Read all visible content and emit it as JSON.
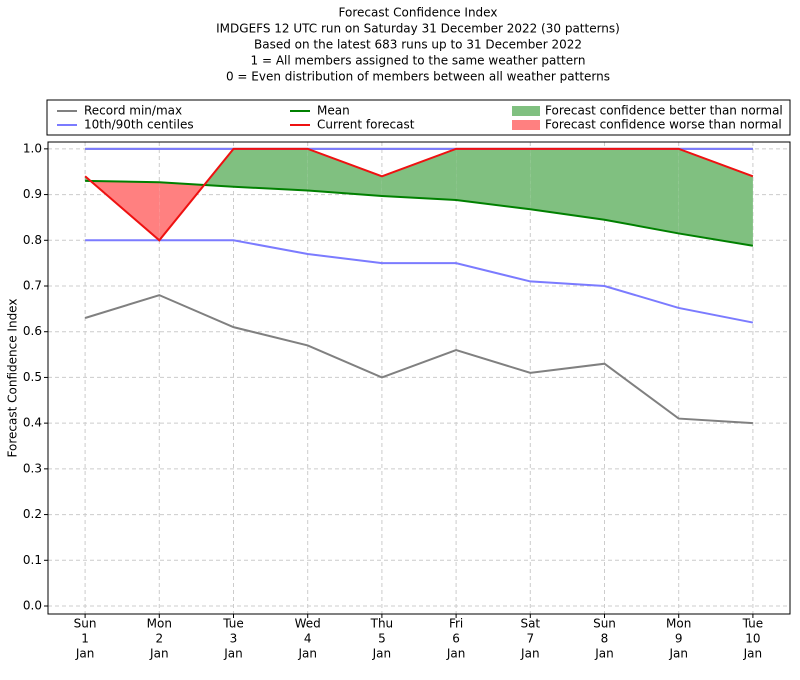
{
  "chart_data": {
    "type": "line",
    "title_lines": [
      "Forecast Confidence Index",
      "IMDGEFS 12 UTC run on Saturday 31 December 2022 (30 patterns)",
      "Based on the latest 683 runs up to 31 December 2022",
      "1 = All members assigned to the same weather pattern",
      "0 = Even distribution of members between all weather patterns"
    ],
    "y_label": "Forecast Confidence Index",
    "categories": [
      [
        "Sun",
        "1",
        "Jan"
      ],
      [
        "Mon",
        "2",
        "Jan"
      ],
      [
        "Tue",
        "3",
        "Jan"
      ],
      [
        "Wed",
        "4",
        "Jan"
      ],
      [
        "Thu",
        "5",
        "Jan"
      ],
      [
        "Fri",
        "6",
        "Jan"
      ],
      [
        "Sat",
        "7",
        "Jan"
      ],
      [
        "Sun",
        "8",
        "Jan"
      ],
      [
        "Mon",
        "9",
        "Jan"
      ],
      [
        "Tue",
        "10",
        "Jan"
      ]
    ],
    "ylim": [
      -0.0175,
      1.015
    ],
    "yticks": [
      {
        "value": 0,
        "label": "0.0"
      },
      0.1,
      0.2,
      0.3,
      0.4,
      0.5,
      0.6,
      0.7,
      0.8,
      0.9,
      {
        "value": 1,
        "label": "1.0"
      }
    ],
    "grid": true,
    "bands": [
      {
        "name": "Record min/max",
        "color": "#808080",
        "lower": [
          0.63,
          0.68,
          0.61,
          0.57,
          0.5,
          0.56,
          0.51,
          0.53,
          0.41,
          0.4
        ],
        "upper": [
          1,
          1,
          1,
          1,
          1,
          1,
          1,
          1,
          1,
          1
        ]
      },
      {
        "name": "10th/90th centiles",
        "color": "#7b7bff",
        "lower": [
          0.8,
          0.8,
          0.8,
          0.77,
          0.75,
          0.75,
          0.71,
          0.7,
          0.652,
          0.62
        ],
        "upper": [
          1,
          1,
          1,
          1,
          1,
          1,
          1,
          1,
          1,
          1
        ]
      }
    ],
    "series": [
      {
        "name": "Mean",
        "color": "#008000",
        "values": [
          0.93,
          0.927,
          0.917,
          0.909,
          0.897,
          0.888,
          0.868,
          0.845,
          0.815,
          0.788
        ]
      },
      {
        "name": "Current forecast",
        "color": "#ee1111",
        "values": [
          0.94,
          0.8,
          1.0,
          1.0,
          0.94,
          1.0,
          1.0,
          1.0,
          1.0,
          0.94
        ]
      }
    ],
    "fills": [
      {
        "name": "Forecast confidence better than normal",
        "color": "#80c080"
      },
      {
        "name": "Forecast confidence worse than normal",
        "color": "#ff8080"
      }
    ]
  }
}
